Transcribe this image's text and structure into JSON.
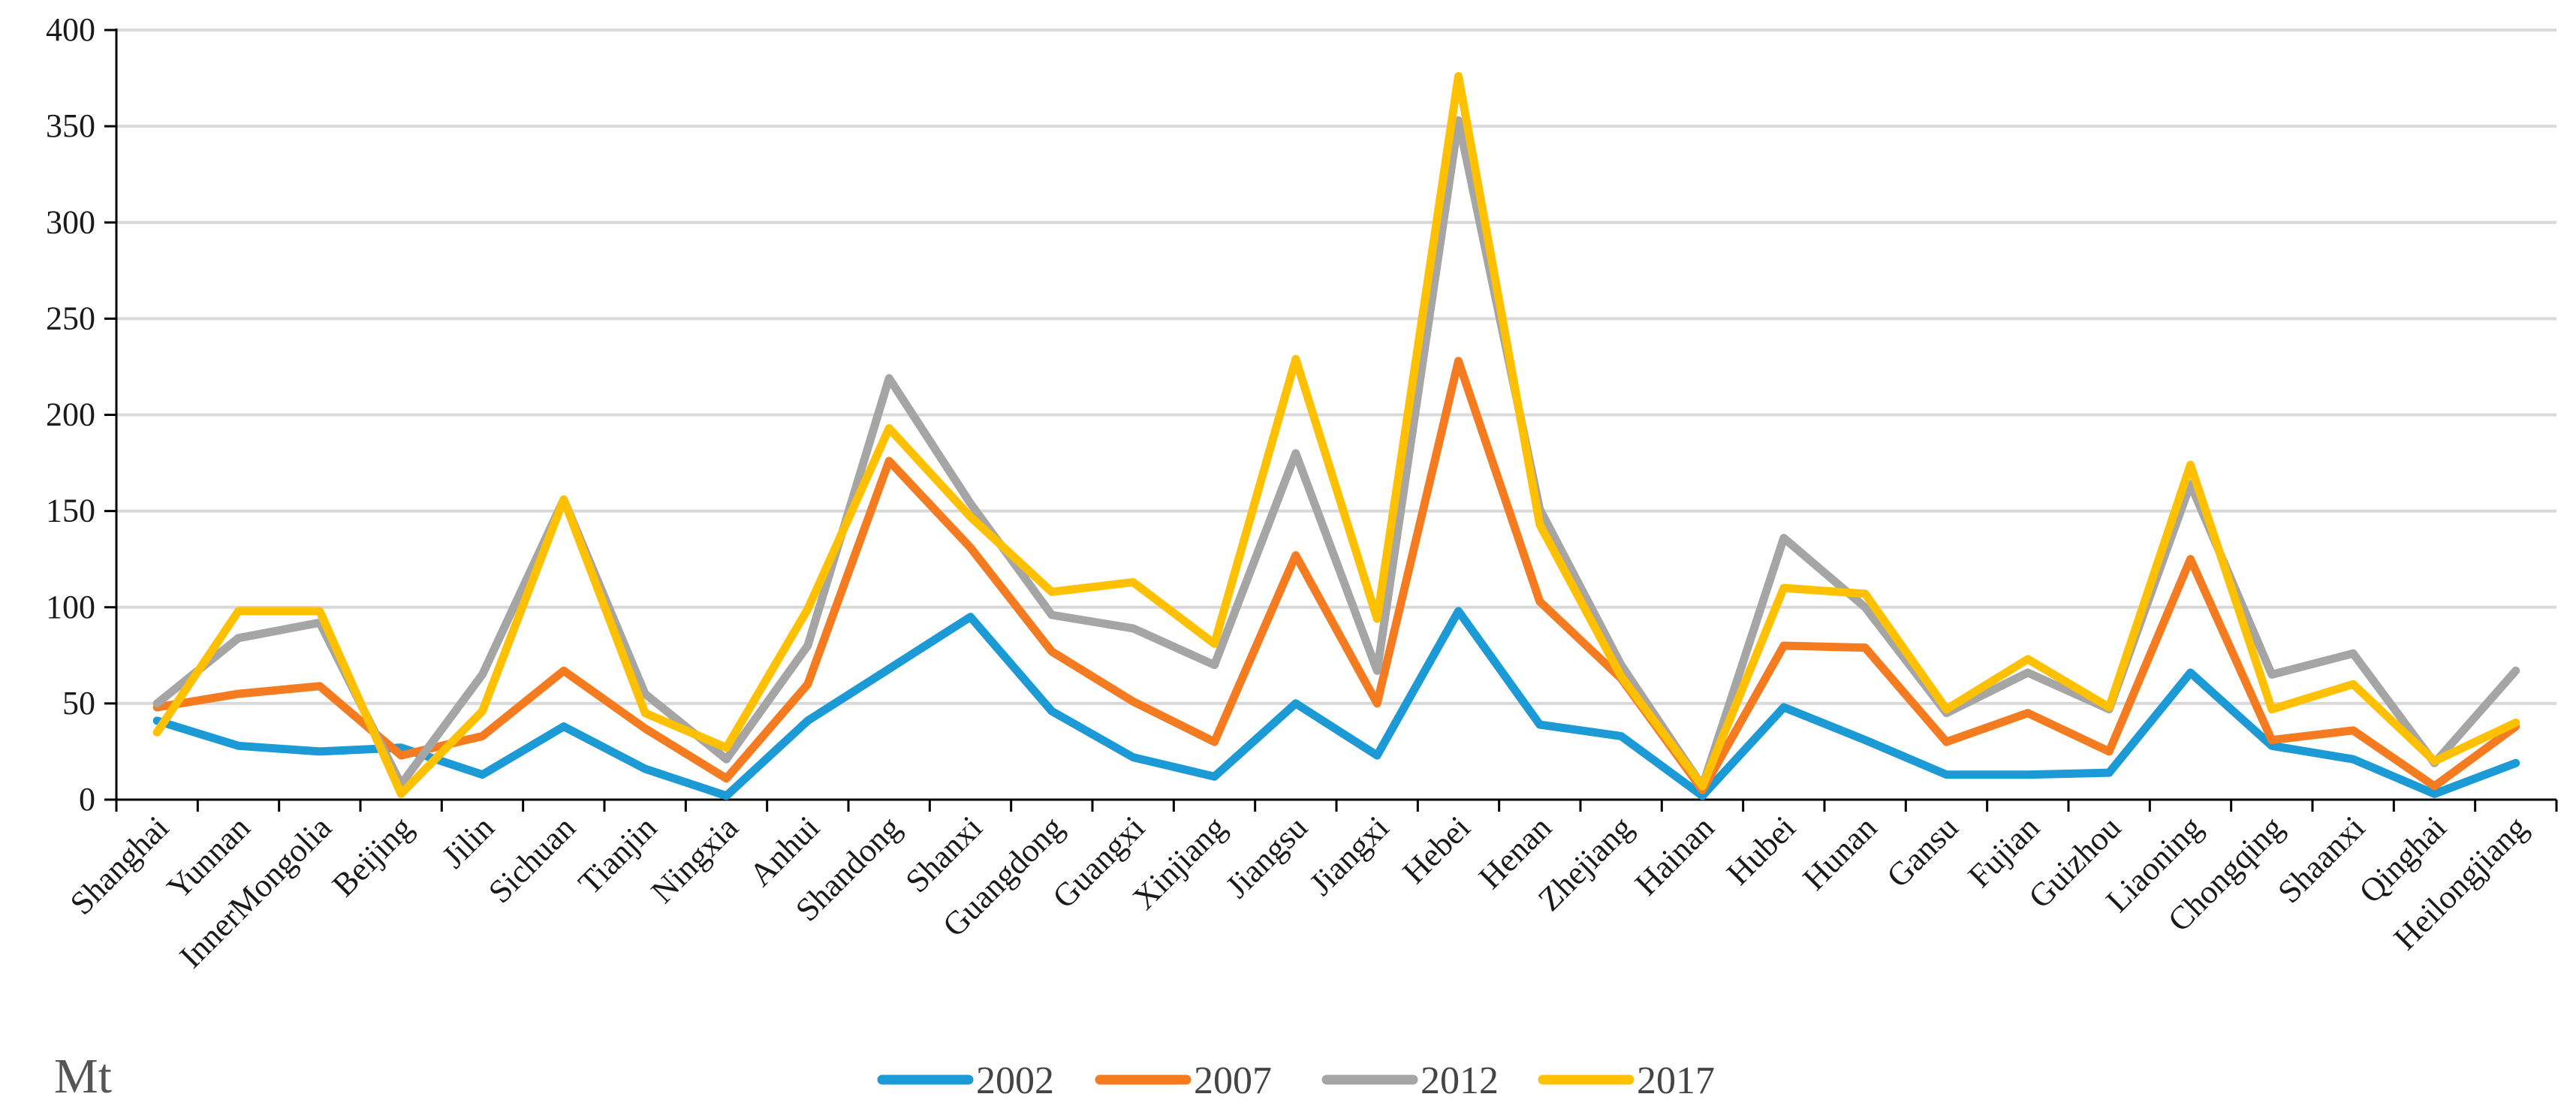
{
  "chart_data": {
    "type": "line",
    "title": "",
    "xlabel": "",
    "ylabel": "",
    "unit_label": "Mt",
    "ylim": [
      0,
      400
    ],
    "yticks": [
      0,
      50,
      100,
      150,
      200,
      250,
      300,
      350,
      400
    ],
    "grid": true,
    "legend_position": "bottom-center",
    "categories": [
      "Shanghai",
      "Yunnan",
      "InnerMongolia",
      "Beijing",
      "Jilin",
      "Sichuan",
      "Tianjin",
      "Ningxia",
      "Anhui",
      "Shandong",
      "Shanxi",
      "Guangdong",
      "Guangxi",
      "Xinjiang",
      "Jiangsu",
      "Jiangxi",
      "Hebei",
      "Henan",
      "Zhejiang",
      "Hainan",
      "Hubei",
      "Hunan",
      "Gansu",
      "Fujian",
      "Guizhou",
      "Liaoning",
      "Chongqing",
      "Shaanxi",
      "Qinghai",
      "Heilongjiang"
    ],
    "series": [
      {
        "name": "2002",
        "color": "#1B9AD6",
        "values": [
          41,
          28,
          25,
          27,
          13,
          38,
          16,
          2,
          41,
          68,
          95,
          46,
          22,
          12,
          50,
          23,
          98,
          39,
          33,
          2,
          48,
          31,
          13,
          13,
          14,
          66,
          28,
          21,
          3,
          19
        ]
      },
      {
        "name": "2007",
        "color": "#F47B20",
        "values": [
          48,
          55,
          59,
          23,
          33,
          67,
          37,
          11,
          60,
          176,
          131,
          77,
          51,
          30,
          127,
          50,
          228,
          103,
          63,
          5,
          80,
          79,
          30,
          45,
          25,
          125,
          31,
          36,
          7,
          38
        ]
      },
      {
        "name": "2012",
        "color": "#A5A5A5",
        "values": [
          50,
          84,
          92,
          8,
          65,
          156,
          55,
          21,
          80,
          219,
          154,
          96,
          89,
          70,
          180,
          67,
          353,
          151,
          70,
          7,
          136,
          100,
          45,
          66,
          47,
          164,
          65,
          76,
          19,
          67
        ]
      },
      {
        "name": "2017",
        "color": "#FFC000",
        "values": [
          35,
          98,
          98,
          3,
          46,
          156,
          45,
          27,
          99,
          193,
          147,
          108,
          113,
          81,
          229,
          94,
          376,
          143,
          64,
          7,
          110,
          107,
          47,
          73,
          48,
          174,
          47,
          60,
          20,
          40
        ]
      }
    ]
  }
}
